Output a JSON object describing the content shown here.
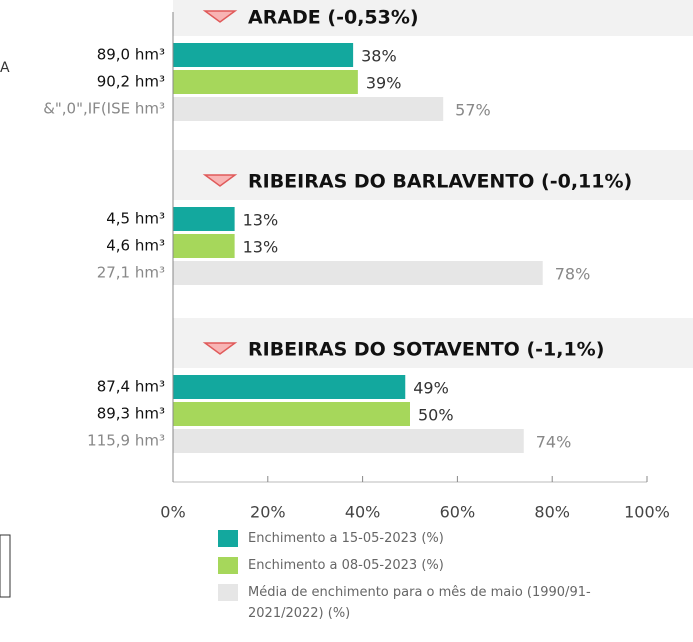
{
  "chart_data": {
    "type": "bar",
    "categories": [
      "ARADE (-0,53%)",
      "RIBEIRAS DO BARLAVENTO (-0,11%)",
      "RIBEIRAS DO SOTAVENTO (-1,1%)"
    ],
    "series": [
      {
        "name": "Enchimento a 15-05-2023 (%)",
        "color": "#13a89e",
        "values": [
          38,
          13,
          49
        ],
        "value_labels": [
          "38%",
          "13%",
          "49%"
        ],
        "volume_labels": [
          "89,0 hm³",
          "4,5 hm³",
          "87,4 hm³"
        ]
      },
      {
        "name": "Enchimento a 08-05-2023 (%)",
        "color": "#a6d75b",
        "values": [
          39,
          13,
          50
        ],
        "value_labels": [
          "39%",
          "13%",
          "50%"
        ],
        "volume_labels": [
          "90,2 hm³",
          "4,6 hm³",
          "89,3 hm³"
        ]
      },
      {
        "name": "Média de enchimento para o mês de maio (1990/91-2021/2022) (%)",
        "color": "#e6e6e6",
        "values": [
          57,
          78,
          74
        ],
        "value_labels": [
          "57%",
          "78%",
          "74%"
        ],
        "volume_labels": [
          "&\",0\",IF(ISE hm³",
          "27,1 hm³",
          "115,9 hm³"
        ]
      }
    ],
    "xlim": [
      0,
      100
    ],
    "xticks": [
      {
        "value": 0,
        "label": "0%"
      },
      {
        "value": 20,
        "label": "20%"
      },
      {
        "value": 40,
        "label": "40%"
      },
      {
        "value": 60,
        "label": "60%"
      },
      {
        "value": 80,
        "label": "80%"
      },
      {
        "value": 100,
        "label": "100%"
      }
    ],
    "fragment": "A"
  }
}
